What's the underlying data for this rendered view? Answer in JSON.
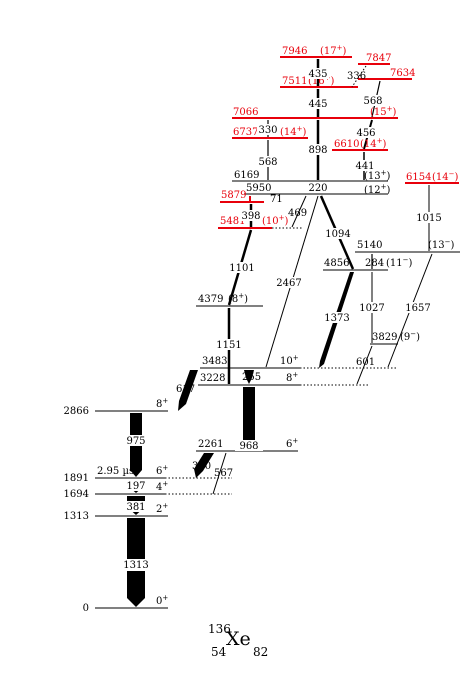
{
  "nucleus": {
    "mass": "136",
    "element": "Xe",
    "z": "54",
    "n": "82"
  },
  "levels": [
    {
      "id": "l0",
      "energy": "0",
      "spin": "0",
      "sup": "+",
      "red": false
    },
    {
      "id": "l1313",
      "energy": "1313",
      "spin": "2",
      "sup": "+",
      "red": false
    },
    {
      "id": "l1694",
      "energy": "1694",
      "spin": "4",
      "sup": "+",
      "red": false
    },
    {
      "id": "l1891",
      "energy": "1891",
      "spin": "6",
      "sup": "+",
      "red": false,
      "note": "2.95 µs"
    },
    {
      "id": "l2261",
      "energy": "2261",
      "spin": "6",
      "sup": "+",
      "red": false
    },
    {
      "id": "l2866",
      "energy": "2866",
      "spin": "8",
      "sup": "+",
      "red": false
    },
    {
      "id": "l3228",
      "energy": "3228",
      "spin": "8",
      "sup": "+",
      "red": false
    },
    {
      "id": "l3483",
      "energy": "3483",
      "spin": "10",
      "sup": "+",
      "red": false
    },
    {
      "id": "l3829",
      "energy": "3829",
      "spin": "(9",
      "sup": "−",
      "close": ")",
      "red": false
    },
    {
      "id": "l4379",
      "energy": "4379",
      "spin": "(8",
      "sup": "+",
      "close": ")",
      "red": false
    },
    {
      "id": "l4856",
      "energy": "4856",
      "spin": "(11",
      "sup": "−",
      "close": ")",
      "red": false
    },
    {
      "id": "l5140",
      "energy": "5140",
      "spin": "(13",
      "sup": "−",
      "close": ")",
      "red": false
    },
    {
      "id": "l5481",
      "energy": "5481",
      "spin": "(10",
      "sup": "+",
      "close": ")",
      "red": true
    },
    {
      "id": "l5879",
      "energy": "5879",
      "spin": "",
      "sup": "",
      "red": true
    },
    {
      "id": "l5950",
      "energy": "5950",
      "spin": "(12",
      "sup": "+",
      "close": ")",
      "red": false
    },
    {
      "id": "l6154",
      "energy": "6154",
      "spin": "(14",
      "sup": "−",
      "close": ")",
      "red": true
    },
    {
      "id": "l6169",
      "energy": "6169",
      "spin": "(13",
      "sup": "+",
      "close": ")",
      "red": false
    },
    {
      "id": "l6610",
      "energy": "6610",
      "spin": "(14",
      "sup": "+",
      "close": ")",
      "red": true
    },
    {
      "id": "l6737",
      "energy": "6737",
      "spin": "(14",
      "sup": "+",
      "close": ")",
      "red": true
    },
    {
      "id": "l7066",
      "energy": "7066",
      "spin": "(15",
      "sup": "+",
      "close": ")",
      "red": true
    },
    {
      "id": "l7511",
      "energy": "7511",
      "spin": "(16",
      "sup": "+",
      "close": ")",
      "red": true
    },
    {
      "id": "l7634",
      "energy": "7634",
      "spin": "",
      "sup": "",
      "red": true
    },
    {
      "id": "l7847",
      "energy": "7847",
      "spin": "",
      "sup": "",
      "red": true
    },
    {
      "id": "l7946",
      "energy": "7946",
      "spin": "(17",
      "sup": "+",
      "close": ")",
      "red": true
    }
  ],
  "transitions": [
    {
      "energy": "1313"
    },
    {
      "energy": "381"
    },
    {
      "energy": "197"
    },
    {
      "energy": "975"
    },
    {
      "energy": "370"
    },
    {
      "energy": "567"
    },
    {
      "energy": "968"
    },
    {
      "energy": "617"
    },
    {
      "energy": "255"
    },
    {
      "energy": "1151"
    },
    {
      "energy": "601"
    },
    {
      "energy": "1101"
    },
    {
      "energy": "2467"
    },
    {
      "energy": "1373"
    },
    {
      "energy": "1027"
    },
    {
      "energy": "1657"
    },
    {
      "energy": "284"
    },
    {
      "energy": "1094"
    },
    {
      "energy": "1015"
    },
    {
      "energy": "398"
    },
    {
      "energy": "469"
    },
    {
      "energy": "71"
    },
    {
      "energy": "220"
    },
    {
      "energy": "441"
    },
    {
      "energy": "898"
    },
    {
      "energy": "568"
    },
    {
      "energy": "456"
    },
    {
      "energy": "330"
    },
    {
      "energy": "445"
    },
    {
      "energy": "336"
    },
    {
      "energy": "435"
    }
  ]
}
